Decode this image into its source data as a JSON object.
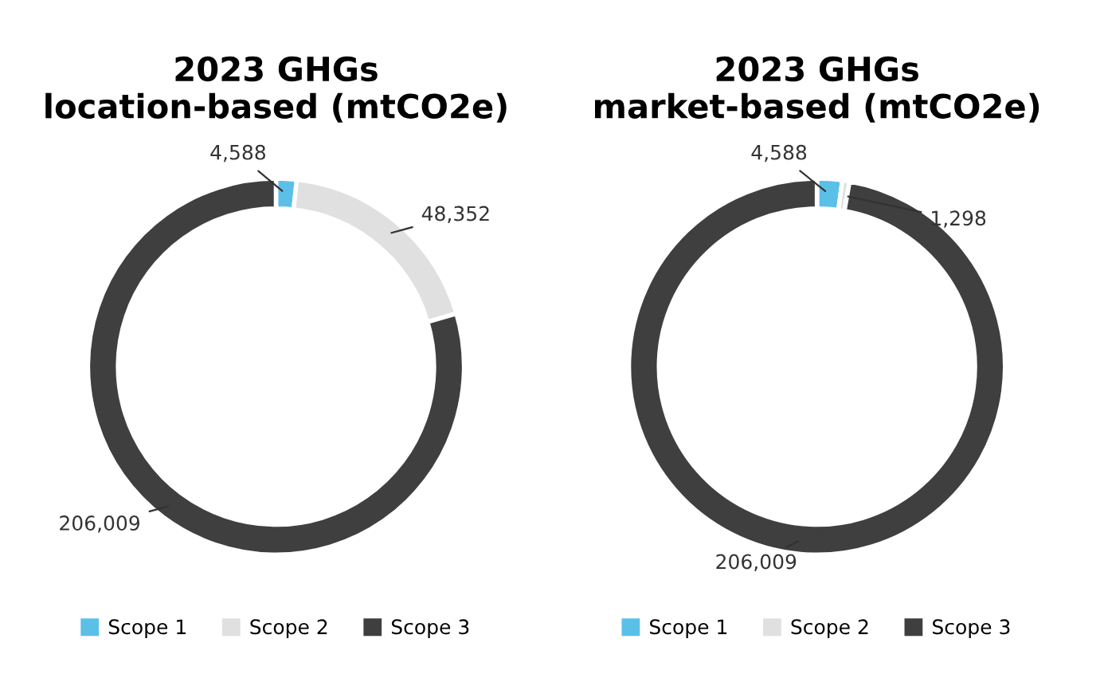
{
  "chart_data": [
    {
      "type": "donut",
      "title": "2023 GHGs\nlocation-based (mtCO2e)",
      "categories": [
        "Scope 1",
        "Scope 2",
        "Scope 3"
      ],
      "values": [
        4588,
        48352,
        206009
      ],
      "colors": [
        "#5bc0e8",
        "#e0e0e0",
        "#3f3f3f"
      ],
      "value_labels": [
        "4,588",
        "48,352",
        "206,009"
      ],
      "legend": "bottom"
    },
    {
      "type": "donut",
      "title": "2023 GHGs\nmarket-based (mtCO2e)",
      "categories": [
        "Scope 1",
        "Scope 2",
        "Scope 3"
      ],
      "values": [
        4588,
        1298,
        206009
      ],
      "colors": [
        "#5bc0e8",
        "#e0e0e0",
        "#3f3f3f"
      ],
      "value_labels": [
        "4,588",
        "1,298",
        "206,009"
      ],
      "legend": "bottom"
    }
  ]
}
